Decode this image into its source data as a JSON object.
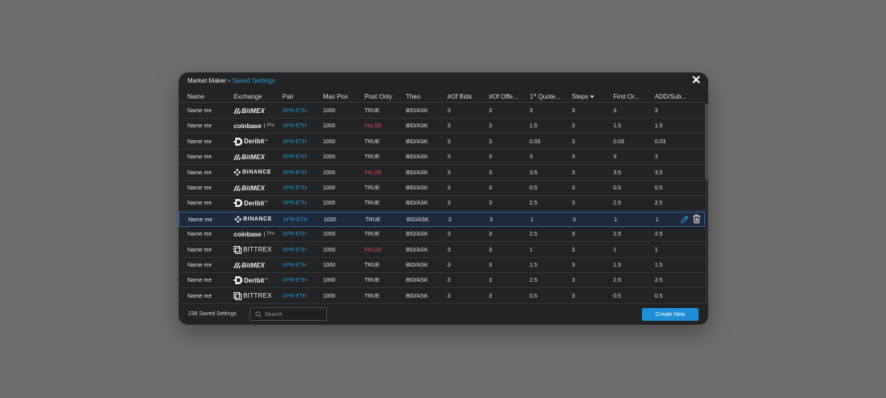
{
  "window": {
    "title": "Market Maker",
    "separator": "•",
    "subtitle": "Saved Settings",
    "close_icon": "close-icon"
  },
  "columns": {
    "name": "Name",
    "exchange": "Exchange",
    "pair": "Pair",
    "max_pos": "Max Pos",
    "post_only": "Post Only",
    "theo": "Theo",
    "bids": "#Of Bids",
    "offers": "#Of Offe...",
    "quote1_prefix": "1",
    "quote1_sup": "st",
    "quote1_suffix": " Quote...",
    "steps": "Steps",
    "steps_sort_icon": "caret-down-icon",
    "first_order": "First Or...",
    "add_sub": "ADD/Sub..."
  },
  "exchange_logos": {
    "bitmex": "BitMEX",
    "coinbase": "coinbase",
    "coinbase_pro": "Pro",
    "deribit": "Deribit",
    "binance": "BINANCE",
    "bittrex": "BITTREX"
  },
  "rows": [
    {
      "name": "Name me",
      "exchange": "bitmex",
      "pair": "XPR-ETH",
      "max_pos": "1000",
      "post_only": "TRUE",
      "theo": "BID/ASK",
      "bids": "3",
      "offers": "3",
      "quote1": "3",
      "steps": "3",
      "first_order": "3",
      "add_sub": "3"
    },
    {
      "name": "Name me",
      "exchange": "coinbase",
      "pair": "XPR-ETH",
      "max_pos": "1000",
      "post_only": "FALSE",
      "theo": "BID/ASK",
      "bids": "3",
      "offers": "3",
      "quote1": "1.5",
      "steps": "3",
      "first_order": "1.5",
      "add_sub": "1.5"
    },
    {
      "name": "Name me",
      "exchange": "deribit",
      "pair": "XPR-ETH",
      "max_pos": "1000",
      "post_only": "TRUE",
      "theo": "BID/ASK",
      "bids": "3",
      "offers": "3",
      "quote1": "0.03",
      "steps": "3",
      "first_order": "0.03",
      "add_sub": "0.03"
    },
    {
      "name": "Name me",
      "exchange": "bitmex",
      "pair": "XPR-ETH",
      "max_pos": "1000",
      "post_only": "TRUE",
      "theo": "BID/ASK",
      "bids": "3",
      "offers": "3",
      "quote1": "3",
      "steps": "3",
      "first_order": "3",
      "add_sub": "3"
    },
    {
      "name": "Name me",
      "exchange": "binance",
      "pair": "XPR-ETH",
      "max_pos": "1000",
      "post_only": "FALSE",
      "theo": "BID/ASK",
      "bids": "3",
      "offers": "3",
      "quote1": "3.5",
      "steps": "3",
      "first_order": "3.5",
      "add_sub": "3.5"
    },
    {
      "name": "Name me",
      "exchange": "bitmex",
      "pair": "XPR-ETH",
      "max_pos": "1000",
      "post_only": "TRUE",
      "theo": "BID/ASK",
      "bids": "3",
      "offers": "3",
      "quote1": "0.5",
      "steps": "3",
      "first_order": "0.5",
      "add_sub": "0.5"
    },
    {
      "name": "Name me",
      "exchange": "deribit",
      "pair": "XPR-ETH",
      "max_pos": "1000",
      "post_only": "TRUE",
      "theo": "BID/ASK",
      "bids": "3",
      "offers": "3",
      "quote1": "2.5",
      "steps": "3",
      "first_order": "2.5",
      "add_sub": "2.5"
    },
    {
      "name": "Name me",
      "exchange": "binance",
      "pair": "XPR-ETH",
      "max_pos": "1000",
      "post_only": "TRUE",
      "theo": "BID/ASK",
      "bids": "3",
      "offers": "3",
      "quote1": "1",
      "steps": "3",
      "first_order": "1",
      "add_sub": "1",
      "selected": true
    },
    {
      "name": "Name me",
      "exchange": "coinbase",
      "pair": "XPR-ETH",
      "max_pos": "1000",
      "post_only": "TRUE",
      "theo": "BID/ASK",
      "bids": "3",
      "offers": "3",
      "quote1": "2.5",
      "steps": "3",
      "first_order": "2.5",
      "add_sub": "2.5"
    },
    {
      "name": "Name me",
      "exchange": "bittrex",
      "pair": "XPR-ETH",
      "max_pos": "1000",
      "post_only": "FALSE",
      "theo": "BID/ASK",
      "bids": "3",
      "offers": "3",
      "quote1": "1",
      "steps": "3",
      "first_order": "1",
      "add_sub": "1"
    },
    {
      "name": "Name me",
      "exchange": "bitmex",
      "pair": "XPR-ETH",
      "max_pos": "1000",
      "post_only": "TRUE",
      "theo": "BID/ASK",
      "bids": "3",
      "offers": "3",
      "quote1": "1.5",
      "steps": "3",
      "first_order": "1.5",
      "add_sub": "1.5"
    },
    {
      "name": "Name me",
      "exchange": "deribit",
      "pair": "XPR-ETH",
      "max_pos": "1000",
      "post_only": "TRUE",
      "theo": "BID/ASK",
      "bids": "3",
      "offers": "3",
      "quote1": "2.5",
      "steps": "3",
      "first_order": "2.5",
      "add_sub": "2.5"
    },
    {
      "name": "Name me",
      "exchange": "bittrex",
      "pair": "XPR-ETH",
      "max_pos": "1000",
      "post_only": "TRUE",
      "theo": "BID/ASK",
      "bids": "3",
      "offers": "3",
      "quote1": "0.5",
      "steps": "3",
      "first_order": "0.5",
      "add_sub": "0.5"
    }
  ],
  "row_actions": {
    "edit_icon": "pencil-icon",
    "delete_icon": "trash-icon"
  },
  "footer": {
    "count_label": "238 Saved Settings",
    "search_placeholder": "Search",
    "search_value": "",
    "search_icon": "search-icon",
    "create_button": "Create New"
  },
  "colors": {
    "accent": "#1e8fd6",
    "pair_text": "#2a93cc",
    "false_text": "#e2475a",
    "selected_row_bg": "#1d2a3b",
    "modal_bg": "#222325"
  }
}
